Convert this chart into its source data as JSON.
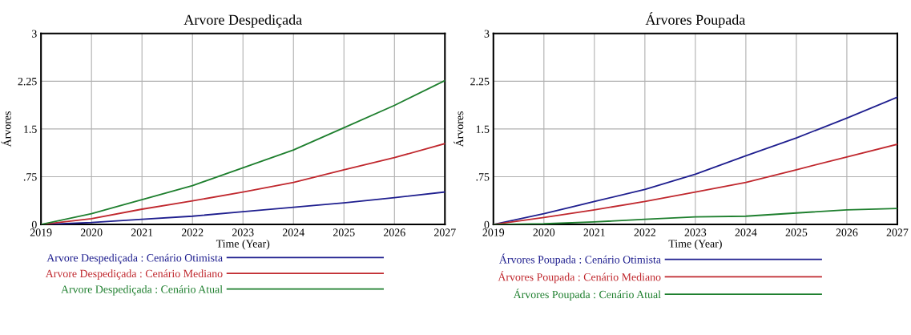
{
  "chart_data": [
    {
      "type": "line",
      "title": "Arvore Despediçada",
      "xlabel": "Time (Year)",
      "ylabel": "Árvores",
      "x": [
        2019,
        2020,
        2021,
        2022,
        2023,
        2024,
        2025,
        2026,
        2027
      ],
      "series": [
        {
          "name": "Arvore Despediçada : Cenário Otimista",
          "color": "#1f1f8f",
          "values": [
            0,
            0.03,
            0.08,
            0.13,
            0.2,
            0.27,
            0.34,
            0.42,
            0.51
          ]
        },
        {
          "name": "Arvore Despediçada : Cenário Mediano",
          "color": "#c0282e",
          "values": [
            0,
            0.09,
            0.24,
            0.37,
            0.51,
            0.66,
            0.86,
            1.05,
            1.27
          ]
        },
        {
          "name": "Arvore Despediçada : Cenário Atual",
          "color": "#1e7f2e",
          "values": [
            0,
            0.17,
            0.39,
            0.61,
            0.89,
            1.17,
            1.52,
            1.87,
            2.26
          ]
        }
      ],
      "xlim": [
        2019,
        2027
      ],
      "xticks": [
        2019,
        2020,
        2021,
        2022,
        2023,
        2024,
        2025,
        2026,
        2027
      ],
      "ylim": [
        0,
        3
      ],
      "yticks": [
        0,
        {
          "value": 0.75,
          "label": ".75"
        },
        1.5,
        2.25,
        3
      ],
      "grid": true,
      "legend": "bottom",
      "marker": "none",
      "line_style": "solid"
    },
    {
      "type": "line",
      "title": "Árvores Poupada",
      "xlabel": "Time (Year)",
      "ylabel": "Árvores",
      "x": [
        2019,
        2020,
        2021,
        2022,
        2023,
        2024,
        2025,
        2026,
        2027
      ],
      "series": [
        {
          "name": "Árvores Poupada : Cenário Otimista",
          "color": "#1f1f8f",
          "values": [
            0,
            0.17,
            0.36,
            0.55,
            0.79,
            1.08,
            1.36,
            1.67,
            2.0
          ]
        },
        {
          "name": "Árvores Poupada : Cenário Mediano",
          "color": "#c0282e",
          "values": [
            0,
            0.11,
            0.23,
            0.36,
            0.51,
            0.66,
            0.86,
            1.06,
            1.26
          ]
        },
        {
          "name": "Árvores Poupada : Cenário Atual",
          "color": "#1e7f2e",
          "values": [
            0,
            0.01,
            0.04,
            0.08,
            0.12,
            0.13,
            0.18,
            0.23,
            0.25
          ]
        }
      ],
      "xlim": [
        2019,
        2027
      ],
      "xticks": [
        2019,
        2020,
        2021,
        2022,
        2023,
        2024,
        2025,
        2026,
        2027
      ],
      "ylim": [
        0,
        3
      ],
      "yticks": [
        0,
        {
          "value": 0.75,
          "label": ".75"
        },
        1.5,
        2.25,
        3
      ],
      "grid": true,
      "legend": "bottom",
      "marker": "none",
      "line_style": "solid"
    }
  ]
}
